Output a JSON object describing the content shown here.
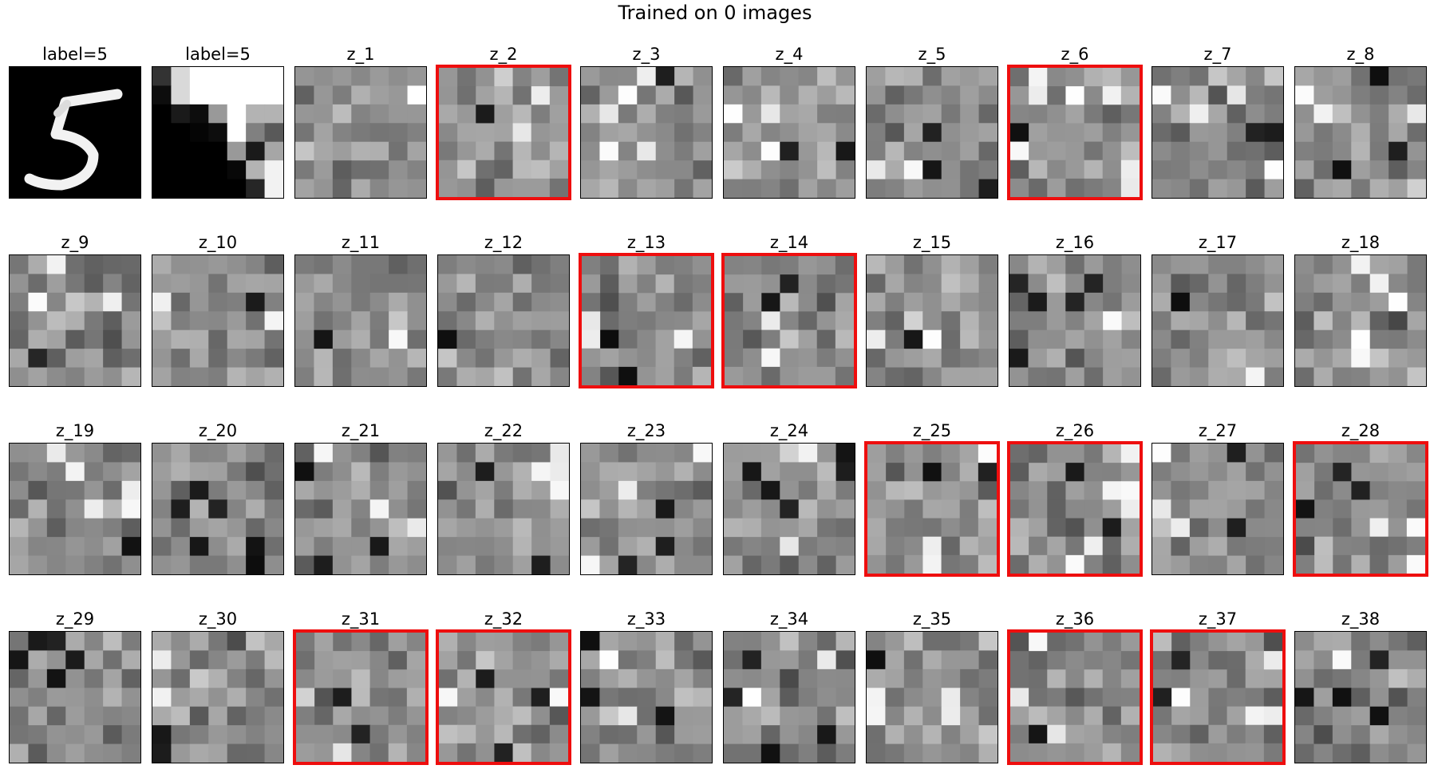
{
  "title": "Trained on 0 images",
  "highlight_color": "#ee0e0e",
  "panels": [
    {
      "label": "label=5",
      "kind": "mnist",
      "highlight": false
    },
    {
      "label": "label=5",
      "kind": "pooled",
      "highlight": false
    },
    {
      "label": "z_1",
      "kind": "noise",
      "highlight": false
    },
    {
      "label": "z_2",
      "kind": "noise",
      "highlight": true
    },
    {
      "label": "z_3",
      "kind": "noise",
      "highlight": false
    },
    {
      "label": "z_4",
      "kind": "noise",
      "highlight": false
    },
    {
      "label": "z_5",
      "kind": "noise",
      "highlight": false
    },
    {
      "label": "z_6",
      "kind": "noise",
      "highlight": true
    },
    {
      "label": "z_7",
      "kind": "noise",
      "highlight": false
    },
    {
      "label": "z_8",
      "kind": "noise",
      "highlight": false
    },
    {
      "label": "z_9",
      "kind": "noise",
      "highlight": false
    },
    {
      "label": "z_10",
      "kind": "noise",
      "highlight": false
    },
    {
      "label": "z_11",
      "kind": "noise",
      "highlight": false
    },
    {
      "label": "z_12",
      "kind": "noise",
      "highlight": false
    },
    {
      "label": "z_13",
      "kind": "noise",
      "highlight": true
    },
    {
      "label": "z_14",
      "kind": "noise",
      "highlight": true
    },
    {
      "label": "z_15",
      "kind": "noise",
      "highlight": false
    },
    {
      "label": "z_16",
      "kind": "noise",
      "highlight": false
    },
    {
      "label": "z_17",
      "kind": "noise",
      "highlight": false
    },
    {
      "label": "z_18",
      "kind": "noise",
      "highlight": false
    },
    {
      "label": "z_19",
      "kind": "noise",
      "highlight": false
    },
    {
      "label": "z_20",
      "kind": "noise",
      "highlight": false
    },
    {
      "label": "z_21",
      "kind": "noise",
      "highlight": false
    },
    {
      "label": "z_22",
      "kind": "noise",
      "highlight": false
    },
    {
      "label": "z_23",
      "kind": "noise",
      "highlight": false
    },
    {
      "label": "z_24",
      "kind": "noise",
      "highlight": false
    },
    {
      "label": "z_25",
      "kind": "noise",
      "highlight": true
    },
    {
      "label": "z_26",
      "kind": "noise",
      "highlight": true
    },
    {
      "label": "z_27",
      "kind": "noise",
      "highlight": false
    },
    {
      "label": "z_28",
      "kind": "noise",
      "highlight": true
    },
    {
      "label": "z_29",
      "kind": "noise",
      "highlight": false
    },
    {
      "label": "z_30",
      "kind": "noise",
      "highlight": false
    },
    {
      "label": "z_31",
      "kind": "noise",
      "highlight": true
    },
    {
      "label": "z_32",
      "kind": "noise",
      "highlight": true
    },
    {
      "label": "z_33",
      "kind": "noise",
      "highlight": false
    },
    {
      "label": "z_34",
      "kind": "noise",
      "highlight": false
    },
    {
      "label": "z_35",
      "kind": "noise",
      "highlight": false
    },
    {
      "label": "z_36",
      "kind": "noise",
      "highlight": true
    },
    {
      "label": "z_37",
      "kind": "noise",
      "highlight": true
    },
    {
      "label": "z_38",
      "kind": "noise",
      "highlight": false
    }
  ]
}
